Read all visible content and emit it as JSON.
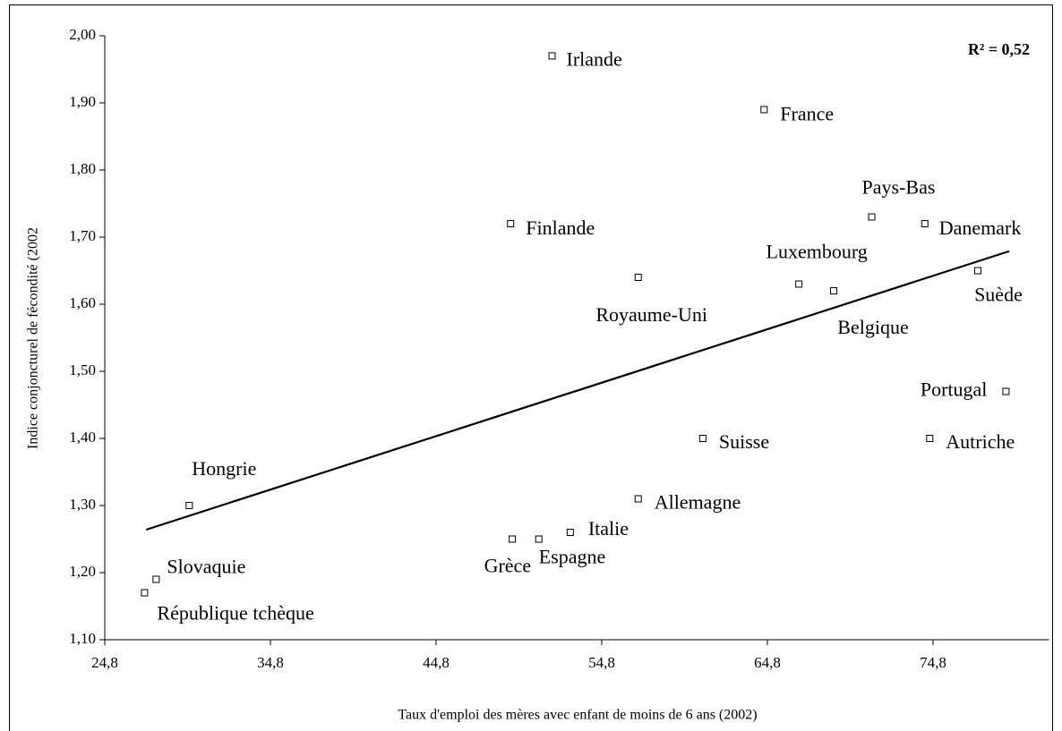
{
  "chart_data": {
    "type": "scatter",
    "annotation": "R² = 0,52",
    "xlabel": "Taux d'emploi des mères avec enfant de moins de 6 ans (2002)",
    "ylabel": "Indice conjoncturel de fécondité (2002",
    "labels": [
      "Irlande",
      "France",
      "Pays-Bas",
      "Danemark",
      "Finlande",
      "Royaume-Uni",
      "Luxembourg",
      "Belgique",
      "Suède",
      "Portugal",
      "Autriche",
      "Suisse",
      "Allemagne",
      "Italie",
      "Espagne",
      "Grèce",
      "Hongrie",
      "Slovaquie",
      "République tchèque"
    ],
    "x": [
      51.8,
      64.6,
      71.1,
      74.3,
      49.3,
      57.0,
      66.7,
      68.8,
      77.5,
      79.2,
      74.6,
      60.9,
      57.0,
      52.9,
      51.0,
      49.4,
      29.9,
      27.9,
      27.2
    ],
    "y": [
      1.97,
      1.89,
      1.73,
      1.72,
      1.72,
      1.64,
      1.63,
      1.62,
      1.65,
      1.47,
      1.4,
      1.4,
      1.31,
      1.26,
      1.25,
      1.25,
      1.3,
      1.19,
      1.17
    ],
    "trendline": {
      "x": [
        27.3,
        79.4
      ],
      "y": [
        1.264,
        1.679
      ]
    },
    "xlim": [
      24.8,
      81.8
    ],
    "ylim": [
      1.1,
      2.0
    ],
    "xticks": [
      {
        "value": 24.8,
        "label": "24,8"
      },
      {
        "value": 34.8,
        "label": "34,8"
      },
      {
        "value": 44.8,
        "label": "44,8"
      },
      {
        "value": 54.8,
        "label": "54,8"
      },
      {
        "value": 64.8,
        "label": "64,8"
      },
      {
        "value": 74.8,
        "label": "74,8"
      }
    ],
    "yticks": [
      {
        "value": 1.1,
        "label": "1,10"
      },
      {
        "value": 1.2,
        "label": "1,20"
      },
      {
        "value": 1.3,
        "label": "1,30"
      },
      {
        "value": 1.4,
        "label": "1,40"
      },
      {
        "value": 1.5,
        "label": "1,50"
      },
      {
        "value": 1.6,
        "label": "1,60"
      },
      {
        "value": 1.7,
        "label": "1,70"
      },
      {
        "value": 1.8,
        "label": "1,80"
      },
      {
        "value": 1.9,
        "label": "1,90"
      },
      {
        "value": 2.0,
        "label": "2,00"
      }
    ]
  }
}
